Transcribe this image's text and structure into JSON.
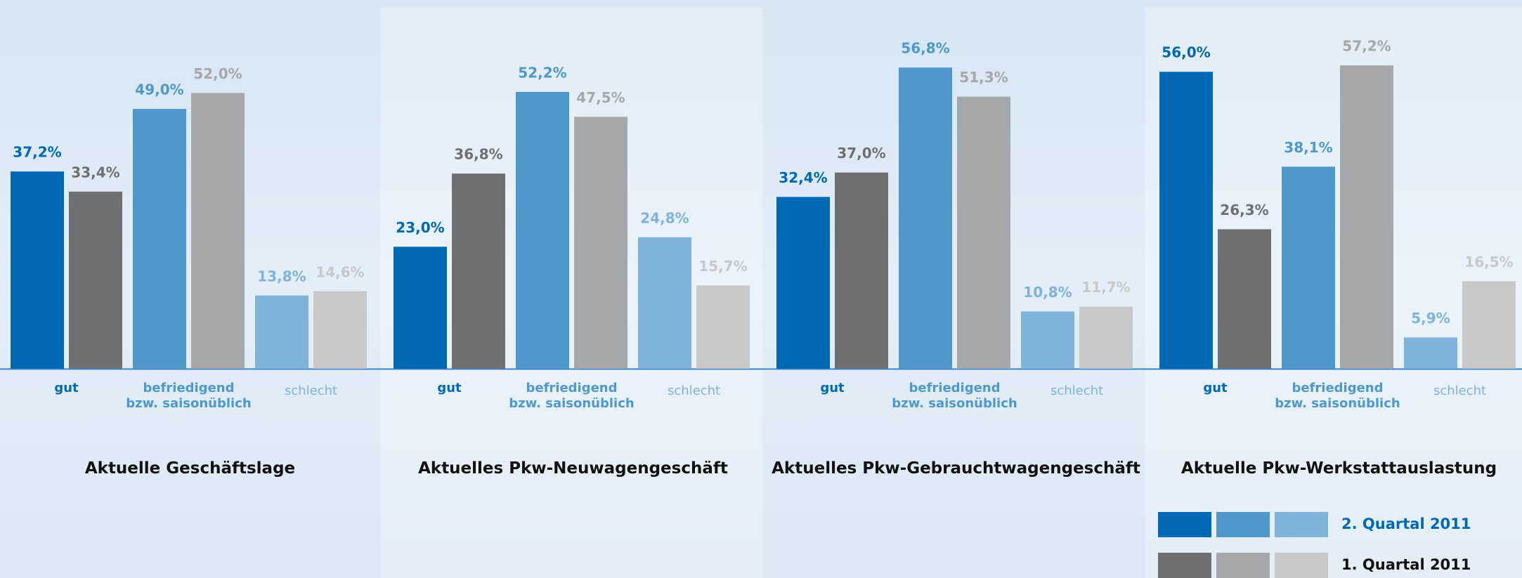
{
  "chart_data": [
    {
      "type": "bar",
      "title": "Aktuelle Geschäftslage",
      "categories": [
        "gut",
        "befriedigend\nbzw. saisonüblich",
        "schlecht"
      ],
      "series": [
        {
          "name": "2. Quartal 2011",
          "colors": [
            "#0068b4",
            "#4f98cc",
            "#80b3da"
          ],
          "values": [
            37.2,
            49.0,
            13.8
          ],
          "value_labels": [
            "37,2%",
            "49,0%",
            "13,8%"
          ]
        },
        {
          "name": "1. Quartal 2011",
          "colors": [
            "#6e6f71",
            "#a6a7a9",
            "#c8c8c9"
          ],
          "values": [
            33.4,
            52.0,
            14.6
          ],
          "value_labels": [
            "33,4%",
            "52,0%",
            "14,6%"
          ]
        }
      ]
    },
    {
      "type": "bar",
      "title": "Aktuelles Pkw-Neuwagengeschäft",
      "categories": [
        "gut",
        "befriedigend\nbzw. saisonüblich",
        "schlecht"
      ],
      "series": [
        {
          "name": "2. Quartal 2011",
          "colors": [
            "#0068b4",
            "#4f98cc",
            "#80b3da"
          ],
          "values": [
            23.0,
            52.2,
            24.8
          ],
          "value_labels": [
            "23,0%",
            "52,2%",
            "24,8%"
          ]
        },
        {
          "name": "1. Quartal 2011",
          "colors": [
            "#6e6f71",
            "#a6a7a9",
            "#c8c8c9"
          ],
          "values": [
            36.8,
            47.5,
            15.7
          ],
          "value_labels": [
            "36,8%",
            "47,5%",
            "15,7%"
          ]
        }
      ]
    },
    {
      "type": "bar",
      "title": "Aktuelles Pkw-Gebrauchtwagengeschäft",
      "categories": [
        "gut",
        "befriedigend\nbzw. saisonüblich",
        "schlecht"
      ],
      "series": [
        {
          "name": "2. Quartal 2011",
          "colors": [
            "#0068b4",
            "#4f98cc",
            "#80b3da"
          ],
          "values": [
            32.4,
            56.8,
            10.8
          ],
          "value_labels": [
            "32,4%",
            "56,8%",
            "10,8%"
          ]
        },
        {
          "name": "1. Quartal 2011",
          "colors": [
            "#6e6f71",
            "#a6a7a9",
            "#c8c8c9"
          ],
          "values": [
            37.0,
            51.3,
            11.7
          ],
          "value_labels": [
            "37,0%",
            "51,3%",
            "11,7%"
          ]
        }
      ]
    },
    {
      "type": "bar",
      "title": "Aktuelle Pkw-Werkstattauslastung",
      "categories": [
        "gut",
        "befriedigend\nbzw. saisonüblich",
        "schlecht"
      ],
      "series": [
        {
          "name": "2. Quartal 2011",
          "colors": [
            "#0068b4",
            "#4f98cc",
            "#80b3da"
          ],
          "values": [
            56.0,
            38.1,
            5.9
          ],
          "value_labels": [
            "56,0%",
            "38,1%",
            "5,9%"
          ]
        },
        {
          "name": "1. Quartal 2011",
          "colors": [
            "#6e6f71",
            "#a6a7a9",
            "#c8c8c9"
          ],
          "values": [
            26.3,
            57.2,
            16.5
          ],
          "value_labels": [
            "26,3%",
            "57,2%",
            "16,5%"
          ]
        }
      ]
    }
  ]
}
